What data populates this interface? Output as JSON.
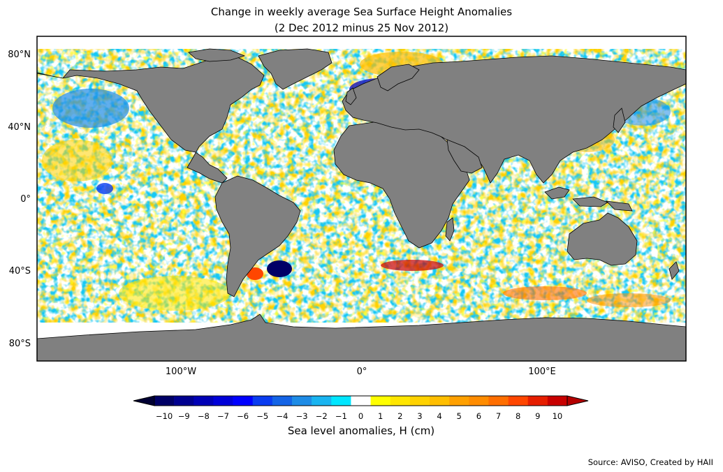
{
  "title": {
    "line1": "Change in weekly average Sea Surface Height Anomalies",
    "line2": "(2 Dec 2012 minus 25 Nov 2012)"
  },
  "axes": {
    "lat_ticks": [
      "80°N",
      "40°N",
      "0°",
      "40°S",
      "80°S"
    ],
    "lon_ticks": [
      "100°W",
      "0°",
      "100°E"
    ]
  },
  "colorbar": {
    "label": "Sea level anomalies, H (cm)",
    "ticks": [
      "−10",
      "−9",
      "−8",
      "−7",
      "−6",
      "−5",
      "−4",
      "−3",
      "−2",
      "−1",
      "0",
      "1",
      "2",
      "3",
      "4",
      "5",
      "6",
      "7",
      "8",
      "9",
      "10"
    ],
    "colors": [
      "#000066",
      "#00008f",
      "#0000b5",
      "#0000d8",
      "#0000ff",
      "#0a3cf0",
      "#1464e6",
      "#1e8ce6",
      "#19b4f0",
      "#00e6ff",
      "#ffffff",
      "#ffff00",
      "#ffe600",
      "#ffd200",
      "#ffbe00",
      "#ffa000",
      "#ff8c00",
      "#ff6e00",
      "#ff4600",
      "#e61e00",
      "#c80000"
    ],
    "under_color": "#000033",
    "over_color": "#b40000"
  },
  "colors": {
    "land": "#808080",
    "ocean_blank": "#ffffff",
    "coast": "#000000"
  },
  "source": "Source: AVISO, Created by HAII"
}
